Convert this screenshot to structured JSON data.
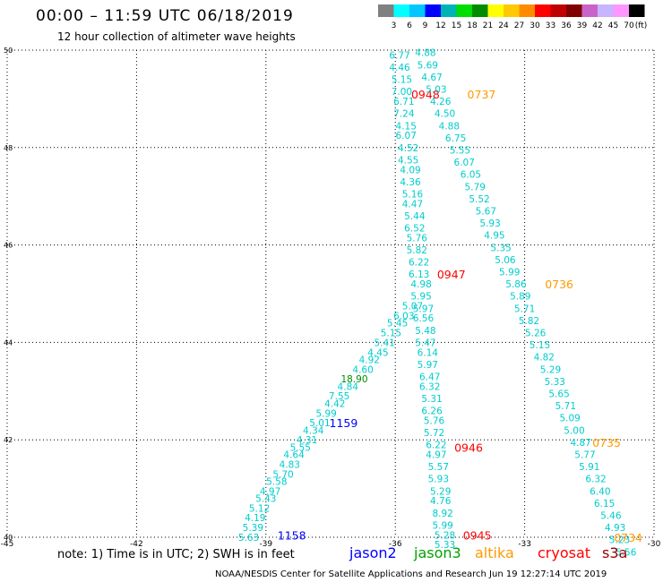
{
  "header": {
    "title": "00:00 – 11:59 UTC 06/18/2019",
    "subtitle": "12 hour collection of altimeter wave heights"
  },
  "colorbar": {
    "unit_label": "(ft)",
    "bins": [
      {
        "color": "#808080",
        "label": "3"
      },
      {
        "color": "#00ffff",
        "label": "6"
      },
      {
        "color": "#00c8ff",
        "label": "9"
      },
      {
        "color": "#0000ff",
        "label": "12"
      },
      {
        "color": "#00b4b4",
        "label": "15"
      },
      {
        "color": "#00dd00",
        "label": "18"
      },
      {
        "color": "#008c00",
        "label": "21"
      },
      {
        "color": "#ffff00",
        "label": "24"
      },
      {
        "color": "#ffc800",
        "label": "27"
      },
      {
        "color": "#ff8c00",
        "label": "30"
      },
      {
        "color": "#ff0000",
        "label": "33"
      },
      {
        "color": "#c00000",
        "label": "36"
      },
      {
        "color": "#800000",
        "label": "39"
      },
      {
        "color": "#c864c8",
        "label": "42"
      },
      {
        "color": "#c8b4ff",
        "label": "45"
      },
      {
        "color": "#ff96ff",
        "label": "70"
      },
      {
        "color": "#000000",
        "label": ""
      }
    ]
  },
  "footer": {
    "note": "note: 1) Time is in UTC; 2) SWH is in feet",
    "legend": [
      {
        "label": "jason2",
        "color": "#0000ff"
      },
      {
        "label": "jason3",
        "color": "#00a000"
      },
      {
        "label": "altika",
        "color": "#ff9900"
      },
      {
        "label": "cryosat",
        "color": "#ff0000"
      },
      {
        "label": "s3a",
        "color": "#990000"
      }
    ],
    "credit": "NOAA/NESDIS Center for Satellite Applications and Research    Jun 19 12:27:14 UTC 2019"
  },
  "chart_data": {
    "type": "scatter",
    "xlim": [
      -45,
      -30
    ],
    "ylim": [
      40,
      50
    ],
    "x_ticks": [
      -45,
      -42,
      -39,
      -36,
      -33,
      -30
    ],
    "y_ticks": [
      40,
      42,
      44,
      46,
      48,
      50
    ],
    "grid": true,
    "value_color": "#00cccc",
    "tracks": [
      {
        "name": "jason2",
        "color": "#0000ff",
        "time_labels": [
          {
            "text": "1158",
            "lon": -38.4,
            "lat": 40.05
          },
          {
            "text": "1159",
            "lon": -37.2,
            "lat": 42.35
          }
        ],
        "points": [
          {
            "lon": -39.4,
            "lat": 40.0,
            "v": "5.63"
          },
          {
            "lon": -39.3,
            "lat": 40.2,
            "v": "5.39"
          },
          {
            "lon": -39.25,
            "lat": 40.4,
            "v": "4.19"
          },
          {
            "lon": -39.15,
            "lat": 40.6,
            "v": "5.12"
          },
          {
            "lon": -39.0,
            "lat": 40.8,
            "v": "5.43"
          },
          {
            "lon": -38.9,
            "lat": 40.95,
            "v": "4.97"
          },
          {
            "lon": -38.75,
            "lat": 41.15,
            "v": "5.58"
          },
          {
            "lon": -38.6,
            "lat": 41.3,
            "v": "5.70"
          },
          {
            "lon": -38.45,
            "lat": 41.5,
            "v": "4.83"
          },
          {
            "lon": -38.35,
            "lat": 41.7,
            "v": "4.64"
          },
          {
            "lon": -38.2,
            "lat": 41.85,
            "v": "5.55"
          },
          {
            "lon": -38.05,
            "lat": 42.0,
            "v": "4.31"
          },
          {
            "lon": -37.9,
            "lat": 42.2,
            "v": "4.34"
          },
          {
            "lon": -37.75,
            "lat": 42.35,
            "v": "5.01"
          },
          {
            "lon": -37.6,
            "lat": 42.55,
            "v": "5.99"
          },
          {
            "lon": -37.4,
            "lat": 42.75,
            "v": "4.42"
          },
          {
            "lon": -37.3,
            "lat": 42.9,
            "v": "7.55"
          },
          {
            "lon": -37.1,
            "lat": 43.1,
            "v": "4.84"
          },
          {
            "lon": -36.95,
            "lat": 43.25,
            "v": "18.90",
            "c": "#008c00"
          },
          {
            "lon": -36.75,
            "lat": 43.45,
            "v": "4.60"
          },
          {
            "lon": -36.6,
            "lat": 43.65,
            "v": "4.92"
          },
          {
            "lon": -36.4,
            "lat": 43.8,
            "v": "4.45"
          },
          {
            "lon": -36.25,
            "lat": 44.0,
            "v": "5.41"
          },
          {
            "lon": -36.1,
            "lat": 44.2,
            "v": "5.15"
          },
          {
            "lon": -35.95,
            "lat": 44.4,
            "v": "5.45"
          },
          {
            "lon": -35.8,
            "lat": 44.55,
            "v": "6.03"
          },
          {
            "lon": -35.6,
            "lat": 44.75,
            "v": "5.07"
          }
        ]
      },
      {
        "name": "cryosat",
        "color": "#ff0000",
        "time_labels": [
          {
            "text": "0948",
            "lon": -35.3,
            "lat": 49.1
          },
          {
            "text": "0947",
            "lon": -34.7,
            "lat": 45.4
          },
          {
            "text": "0946",
            "lon": -34.3,
            "lat": 41.85
          },
          {
            "text": "0945",
            "lon": -34.1,
            "lat": 40.05
          }
        ],
        "points": [
          {
            "lon": -35.9,
            "lat": 49.9,
            "v": "6.77"
          },
          {
            "lon": -35.9,
            "lat": 49.65,
            "v": "4.46"
          },
          {
            "lon": -35.85,
            "lat": 49.4,
            "v": "5.15"
          },
          {
            "lon": -35.85,
            "lat": 49.15,
            "v": "7.00"
          },
          {
            "lon": -35.8,
            "lat": 48.95,
            "v": "6.71"
          },
          {
            "lon": -35.8,
            "lat": 48.7,
            "v": "7.24"
          },
          {
            "lon": -35.75,
            "lat": 48.45,
            "v": "4.15"
          },
          {
            "lon": -35.75,
            "lat": 48.25,
            "v": "6.07"
          },
          {
            "lon": -35.7,
            "lat": 48.0,
            "v": "4.52"
          },
          {
            "lon": -35.7,
            "lat": 47.75,
            "v": "4.55"
          },
          {
            "lon": -35.65,
            "lat": 47.55,
            "v": "4.09"
          },
          {
            "lon": -35.65,
            "lat": 47.3,
            "v": "4.36"
          },
          {
            "lon": -35.6,
            "lat": 47.05,
            "v": "5.16"
          },
          {
            "lon": -35.6,
            "lat": 46.85,
            "v": "4.47"
          },
          {
            "lon": -35.55,
            "lat": 46.6,
            "v": "5.44"
          },
          {
            "lon": -35.55,
            "lat": 46.35,
            "v": "6.52"
          },
          {
            "lon": -35.5,
            "lat": 46.15,
            "v": "5.76"
          },
          {
            "lon": -35.5,
            "lat": 45.9,
            "v": "5.82"
          },
          {
            "lon": -35.45,
            "lat": 45.65,
            "v": "6.22"
          },
          {
            "lon": -35.45,
            "lat": 45.4,
            "v": "6.13"
          },
          {
            "lon": -35.4,
            "lat": 45.2,
            "v": "4.98"
          },
          {
            "lon": -35.4,
            "lat": 44.95,
            "v": "5.95"
          },
          {
            "lon": -35.35,
            "lat": 44.7,
            "v": "5.97"
          },
          {
            "lon": -35.35,
            "lat": 44.5,
            "v": "6.56"
          },
          {
            "lon": -35.3,
            "lat": 44.25,
            "v": "5.48"
          },
          {
            "lon": -35.3,
            "lat": 44.0,
            "v": "5.47"
          },
          {
            "lon": -35.25,
            "lat": 43.8,
            "v": "6.14"
          },
          {
            "lon": -35.25,
            "lat": 43.55,
            "v": "5.97"
          },
          {
            "lon": -35.2,
            "lat": 43.3,
            "v": "6.47"
          },
          {
            "lon": -35.2,
            "lat": 43.1,
            "v": "6.32"
          },
          {
            "lon": -35.15,
            "lat": 42.85,
            "v": "5.31"
          },
          {
            "lon": -35.15,
            "lat": 42.6,
            "v": "6.26"
          },
          {
            "lon": -35.1,
            "lat": 42.4,
            "v": "5.76"
          },
          {
            "lon": -35.1,
            "lat": 42.15,
            "v": "5.72"
          },
          {
            "lon": -35.05,
            "lat": 41.9,
            "v": "6.22"
          },
          {
            "lon": -35.05,
            "lat": 41.7,
            "v": "4.97"
          },
          {
            "lon": -35.0,
            "lat": 41.45,
            "v": "5.57"
          },
          {
            "lon": -35.0,
            "lat": 41.2,
            "v": "5.93"
          },
          {
            "lon": -34.95,
            "lat": 40.95,
            "v": "5.29"
          },
          {
            "lon": -34.95,
            "lat": 40.75,
            "v": "4.76"
          },
          {
            "lon": -34.9,
            "lat": 40.5,
            "v": "8.92"
          },
          {
            "lon": -34.9,
            "lat": 40.25,
            "v": "5.99"
          },
          {
            "lon": -34.85,
            "lat": 40.05,
            "v": "5.28"
          },
          {
            "lon": -34.85,
            "lat": 39.85,
            "v": "5.33"
          }
        ]
      },
      {
        "name": "altika",
        "color": "#ff9900",
        "time_labels": [
          {
            "text": "0737",
            "lon": -34.0,
            "lat": 49.1
          },
          {
            "text": "0736",
            "lon": -32.2,
            "lat": 45.2
          },
          {
            "text": "0735",
            "lon": -31.1,
            "lat": 41.95
          },
          {
            "text": "0734",
            "lon": -30.6,
            "lat": 40.0
          }
        ],
        "points": [
          {
            "lon": -35.3,
            "lat": 49.95,
            "v": "4.88"
          },
          {
            "lon": -35.25,
            "lat": 49.7,
            "v": "5.69"
          },
          {
            "lon": -35.15,
            "lat": 49.45,
            "v": "4.67"
          },
          {
            "lon": -35.05,
            "lat": 49.2,
            "v": "5.03"
          },
          {
            "lon": -34.95,
            "lat": 48.95,
            "v": "4.26"
          },
          {
            "lon": -34.85,
            "lat": 48.7,
            "v": "4.50"
          },
          {
            "lon": -34.75,
            "lat": 48.45,
            "v": "4.88"
          },
          {
            "lon": -34.6,
            "lat": 48.2,
            "v": "6.75"
          },
          {
            "lon": -34.5,
            "lat": 47.95,
            "v": "5.55"
          },
          {
            "lon": -34.4,
            "lat": 47.7,
            "v": "6.07"
          },
          {
            "lon": -34.25,
            "lat": 47.45,
            "v": "6.05"
          },
          {
            "lon": -34.15,
            "lat": 47.2,
            "v": "5.79"
          },
          {
            "lon": -34.05,
            "lat": 46.95,
            "v": "5.52"
          },
          {
            "lon": -33.9,
            "lat": 46.7,
            "v": "5.67"
          },
          {
            "lon": -33.8,
            "lat": 46.45,
            "v": "5.93"
          },
          {
            "lon": -33.7,
            "lat": 46.2,
            "v": "4.95"
          },
          {
            "lon": -33.55,
            "lat": 45.95,
            "v": "5.35"
          },
          {
            "lon": -33.45,
            "lat": 45.7,
            "v": "5.06"
          },
          {
            "lon": -33.35,
            "lat": 45.45,
            "v": "5.99"
          },
          {
            "lon": -33.2,
            "lat": 45.2,
            "v": "5.86"
          },
          {
            "lon": -33.1,
            "lat": 44.95,
            "v": "5.89"
          },
          {
            "lon": -33.0,
            "lat": 44.7,
            "v": "5.71"
          },
          {
            "lon": -32.9,
            "lat": 44.45,
            "v": "5.82"
          },
          {
            "lon": -32.75,
            "lat": 44.2,
            "v": "5.26"
          },
          {
            "lon": -32.65,
            "lat": 43.95,
            "v": "5.15"
          },
          {
            "lon": -32.55,
            "lat": 43.7,
            "v": "4.82"
          },
          {
            "lon": -32.4,
            "lat": 43.45,
            "v": "5.29"
          },
          {
            "lon": -32.3,
            "lat": 43.2,
            "v": "5.33"
          },
          {
            "lon": -32.2,
            "lat": 42.95,
            "v": "5.65"
          },
          {
            "lon": -32.05,
            "lat": 42.7,
            "v": "5.71"
          },
          {
            "lon": -31.95,
            "lat": 42.45,
            "v": "5.09"
          },
          {
            "lon": -31.85,
            "lat": 42.2,
            "v": "5.00"
          },
          {
            "lon": -31.7,
            "lat": 41.95,
            "v": "4.87"
          },
          {
            "lon": -31.6,
            "lat": 41.7,
            "v": "5.77"
          },
          {
            "lon": -31.5,
            "lat": 41.45,
            "v": "5.91"
          },
          {
            "lon": -31.35,
            "lat": 41.2,
            "v": "6.32"
          },
          {
            "lon": -31.25,
            "lat": 40.95,
            "v": "6.40"
          },
          {
            "lon": -31.15,
            "lat": 40.7,
            "v": "6.15"
          },
          {
            "lon": -31.0,
            "lat": 40.45,
            "v": "5.46"
          },
          {
            "lon": -30.9,
            "lat": 40.2,
            "v": "4.93"
          },
          {
            "lon": -30.8,
            "lat": 39.95,
            "v": "5.23"
          },
          {
            "lon": -30.65,
            "lat": 39.7,
            "v": "5.56"
          }
        ]
      }
    ]
  }
}
